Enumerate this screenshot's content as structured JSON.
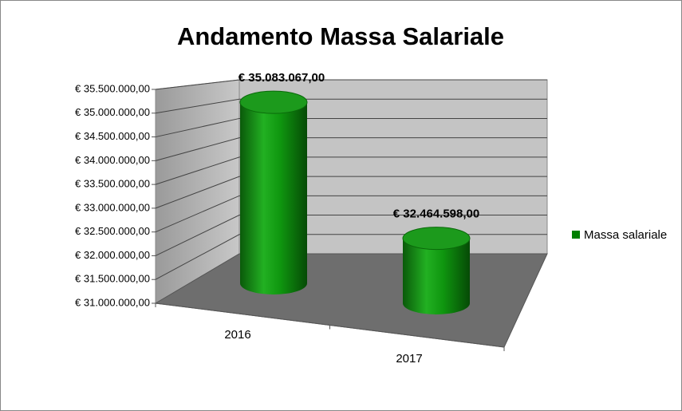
{
  "chart_data": {
    "type": "bar",
    "title": "Andamento Massa Salariale",
    "categories": [
      "2016",
      "2017"
    ],
    "series": [
      {
        "name": "Massa salariale",
        "color": "#008000",
        "values": [
          35083067,
          32464598
        ],
        "value_labels": [
          "€ 35.083.067,00",
          "€ 32.464.598,00"
        ]
      }
    ],
    "ylim": [
      31000000,
      35500000
    ],
    "yticks": [
      {
        "value": 31000000,
        "label": "€ 31.000.000,00"
      },
      {
        "value": 31500000,
        "label": "€ 31.500.000,00"
      },
      {
        "value": 32000000,
        "label": "€ 32.000.000,00"
      },
      {
        "value": 32500000,
        "label": "€ 32.500.000,00"
      },
      {
        "value": 33000000,
        "label": "€ 33.000.000,00"
      },
      {
        "value": 33500000,
        "label": "€ 33.500.000,00"
      },
      {
        "value": 34000000,
        "label": "€ 34.000.000,00"
      },
      {
        "value": 34500000,
        "label": "€ 34.500.000,00"
      },
      {
        "value": 35000000,
        "label": "€ 35.000.000,00"
      },
      {
        "value": 35500000,
        "label": "€ 35.500.000,00"
      }
    ],
    "grid": true,
    "legend": "right"
  }
}
